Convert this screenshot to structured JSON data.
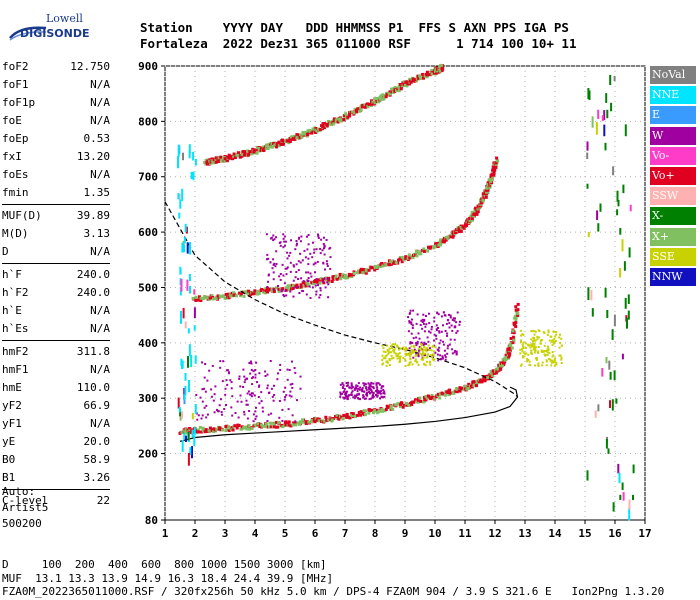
{
  "logo": {
    "line1": "Lowell",
    "line2": "DIGISONDE"
  },
  "header": {
    "line1": "Station    YYYY DAY   DDD HHMMSS P1  FFS S AXN PPS IGA PS",
    "line2": "Fortaleza  2022 Dez31 365 011000 RSF      1 714 100 10+ 11"
  },
  "params": [
    [
      {
        "name": "foF2",
        "value": "12.750"
      },
      {
        "name": "foF1",
        "value": "N/A"
      },
      {
        "name": "foF1p",
        "value": "N/A"
      },
      {
        "name": "foE",
        "value": "N/A"
      },
      {
        "name": "foEp",
        "value": "0.53"
      },
      {
        "name": "fxI",
        "value": "13.20"
      },
      {
        "name": "foEs",
        "value": "N/A"
      },
      {
        "name": "fmin",
        "value": "1.35"
      }
    ],
    [
      {
        "name": "MUF(D)",
        "value": "39.89"
      },
      {
        "name": "M(D)",
        "value": "3.13"
      },
      {
        "name": "D",
        "value": "N/A"
      }
    ],
    [
      {
        "name": "h`F",
        "value": "240.0"
      },
      {
        "name": "h`F2",
        "value": "240.0"
      },
      {
        "name": "h`E",
        "value": "N/A"
      },
      {
        "name": "h`Es",
        "value": "N/A"
      }
    ],
    [
      {
        "name": "hmF2",
        "value": "311.8"
      },
      {
        "name": "hmF1",
        "value": "N/A"
      },
      {
        "name": "hmE",
        "value": "110.0"
      },
      {
        "name": "yF2",
        "value": "66.9"
      },
      {
        "name": "yF1",
        "value": "N/A"
      },
      {
        "name": "yE",
        "value": "20.0"
      },
      {
        "name": "B0",
        "value": "58.9"
      },
      {
        "name": "B1",
        "value": "3.26"
      }
    ],
    [
      {
        "name": "C-level",
        "value": "22"
      }
    ]
  ],
  "auto": {
    "l1": "Auto:",
    "l2": "Artist5",
    "l3": "500200"
  },
  "footer": {
    "l1": "D     100  200  400  600  800 1000 1500 3000 [km]",
    "l2": "MUF  13.1 13.3 13.9 14.9 16.3 18.4 24.4 39.9 [MHz]",
    "l3": "FZA0M_2022365011000.RSF / 320fx256h 50 kHz 5.0 km / DPS-4 FZA0M 904 / 3.9 S 321.6 E   Ion2Png 1.3.20"
  },
  "legend": [
    {
      "label": "NoVal",
      "color": "#808080"
    },
    {
      "label": "NNE",
      "color": "#00e5ff"
    },
    {
      "label": "E",
      "color": "#3a9bff"
    },
    {
      "label": "W",
      "color": "#a000a0"
    },
    {
      "label": "Vo-",
      "color": "#ff3cc8"
    },
    {
      "label": "Vo+",
      "color": "#e00020"
    },
    {
      "label": "SSW",
      "color": "#ffb0b0"
    },
    {
      "label": "X-",
      "color": "#008000"
    },
    {
      "label": "X+",
      "color": "#80c060"
    },
    {
      "label": "SSE",
      "color": "#c8d200"
    },
    {
      "label": "NNW",
      "color": "#1010c0"
    }
  ],
  "chart_data": {
    "type": "scatter",
    "xlim": [
      1,
      17
    ],
    "ylim": [
      80,
      900
    ],
    "xticks": [
      "1",
      "2",
      "3",
      "4",
      "5",
      "6",
      "7",
      "8",
      "9",
      "10",
      "11",
      "12",
      "13",
      "14",
      "15",
      "16",
      "17"
    ],
    "yticks": [
      {
        "v": 200,
        "t": "200"
      },
      {
        "v": 300,
        "t": "300"
      },
      {
        "v": 400,
        "t": "400"
      },
      {
        "v": 500,
        "t": "500"
      },
      {
        "v": 600,
        "t": "600"
      },
      {
        "v": 700,
        "t": "700"
      },
      {
        "v": 800,
        "t": "800"
      },
      {
        "v": 900,
        "t": "900"
      }
    ],
    "series": [
      {
        "kind": "trace",
        "color": "#e00020",
        "alt": "#80c060",
        "x": [
          1.5,
          2,
          3,
          4,
          5,
          6,
          7,
          8,
          9,
          10,
          11,
          11.5,
          12,
          12.3,
          12.5,
          12.7
        ],
        "y": [
          243,
          245,
          248,
          252,
          256,
          262,
          270,
          280,
          292,
          306,
          322,
          334,
          352,
          372,
          398,
          470
        ]
      },
      {
        "kind": "trace",
        "color": "#e00020",
        "alt": "#80c060",
        "x": [
          1.9,
          3,
          4,
          5,
          6,
          7,
          8,
          9,
          10,
          10.5,
          11,
          11.3,
          11.5,
          11.7,
          11.85,
          12
        ],
        "y": [
          482,
          487,
          494,
          502,
          512,
          524,
          538,
          556,
          580,
          596,
          618,
          638,
          656,
          680,
          702,
          732
        ]
      },
      {
        "kind": "trace",
        "color": "#e00020",
        "alt": "#80c060",
        "x": [
          2.3,
          3,
          4,
          5,
          6,
          7,
          8,
          9,
          10,
          10.2
        ],
        "y": [
          728,
          736,
          750,
          767,
          788,
          812,
          840,
          872,
          894,
          900
        ]
      },
      {
        "kind": "line",
        "dashed": false,
        "x": [
          1.5,
          2,
          3,
          4,
          5,
          6,
          7,
          8,
          9,
          10,
          11,
          12,
          12.5,
          12.75,
          12.7,
          12.5
        ],
        "y": [
          222,
          229,
          234,
          237,
          240,
          243,
          246,
          249,
          253,
          258,
          265,
          275,
          285,
          302,
          315,
          320
        ]
      },
      {
        "kind": "line",
        "dashed": true,
        "x": [
          1,
          2,
          3,
          4,
          5,
          6,
          7,
          8,
          9,
          10,
          11,
          12,
          12.7,
          12.75
        ],
        "y": [
          655,
          558,
          510,
          478,
          452,
          432,
          414,
          400,
          388,
          373,
          355,
          330,
          306,
          302
        ]
      },
      {
        "kind": "cluster",
        "color": "#a000a0",
        "x": [
          2.0,
          5.5
        ],
        "y": [
          260,
          370
        ]
      },
      {
        "kind": "cluster",
        "color": "#a000a0",
        "x": [
          4.3,
          6.5
        ],
        "y": [
          480,
          600
        ]
      },
      {
        "kind": "cluster",
        "color": "#a000a0",
        "x": [
          6.8,
          8.3
        ],
        "y": [
          300,
          330
        ]
      },
      {
        "kind": "cluster",
        "color": "#a000a0",
        "x": [
          9.0,
          10.8
        ],
        "y": [
          370,
          460
        ]
      },
      {
        "kind": "cluster",
        "color": "#c8d200",
        "x": [
          12.8,
          14.2
        ],
        "y": [
          360,
          425
        ]
      },
      {
        "kind": "cluster",
        "color": "#c8d200",
        "x": [
          8.2,
          10.0
        ],
        "y": [
          360,
          400
        ]
      },
      {
        "kind": "column",
        "color": "#00e5ff",
        "x": [
          1.4,
          2.0
        ],
        "y": [
          200,
          760
        ]
      },
      {
        "kind": "column",
        "color": "#008000",
        "x": [
          15.0,
          16.6
        ],
        "y": [
          100,
          890
        ]
      }
    ]
  }
}
